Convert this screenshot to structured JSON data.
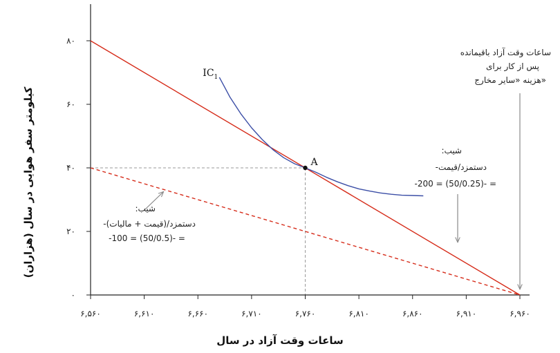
{
  "chart_data": {
    "type": "line",
    "xlabel": "ساعات وقت آزاد در سال",
    "ylabel": "کیلومتر سفر هوایی در سال (هزاران)",
    "xlim": [
      6560,
      6960
    ],
    "ylim": [
      0,
      80
    ],
    "x_ticks": [
      {
        "value": 6560,
        "label": "۶,۵۶۰"
      },
      {
        "value": 6610,
        "label": "۶,۶۱۰"
      },
      {
        "value": 6660,
        "label": "۶,۶۶۰"
      },
      {
        "value": 6710,
        "label": "۶,۷۱۰"
      },
      {
        "value": 6760,
        "label": "۶,۷۶۰"
      },
      {
        "value": 6810,
        "label": "۶,۸۱۰"
      },
      {
        "value": 6860,
        "label": "۶,۸۶۰"
      },
      {
        "value": 6910,
        "label": "۶,۹۱۰"
      },
      {
        "value": 6960,
        "label": "۶,۹۶۰"
      }
    ],
    "y_ticks": [
      {
        "value": 0,
        "label": "۰"
      },
      {
        "value": 20,
        "label": "۲۰"
      },
      {
        "value": 40,
        "label": "۴۰"
      },
      {
        "value": 60,
        "label": "۶۰"
      },
      {
        "value": 80,
        "label": "۸۰"
      }
    ],
    "series": [
      {
        "kind": "budget-line",
        "color": "#d62c1a",
        "style": "solid",
        "points": [
          [
            6560,
            80
          ],
          [
            6960,
            0
          ]
        ]
      },
      {
        "kind": "budget-line-with-tax",
        "color": "#d62c1a",
        "style": "dashed",
        "points": [
          [
            6560,
            40
          ],
          [
            6960,
            0
          ]
        ]
      },
      {
        "name": "IC1",
        "kind": "indifference-curve",
        "color": "#3b4ea6",
        "style": "solid",
        "points": [
          [
            6680,
            68.5
          ],
          [
            6690,
            62.2
          ],
          [
            6700,
            57.0
          ],
          [
            6710,
            52.6
          ],
          [
            6720,
            48.9
          ],
          [
            6730,
            45.7
          ],
          [
            6740,
            43.2
          ],
          [
            6750,
            41.3
          ],
          [
            6760,
            40.0
          ],
          [
            6770,
            38.6
          ],
          [
            6780,
            37.0
          ],
          [
            6790,
            35.6
          ],
          [
            6800,
            34.4
          ],
          [
            6810,
            33.4
          ],
          [
            6820,
            32.7
          ],
          [
            6830,
            32.1
          ],
          [
            6840,
            31.7
          ],
          [
            6850,
            31.4
          ],
          [
            6860,
            31.3
          ],
          [
            6870,
            31.2
          ]
        ]
      }
    ],
    "point_A": {
      "label": "A",
      "x": 6760,
      "y": 40
    },
    "ic_label": {
      "main": "IC",
      "sub": "1"
    },
    "annotations": {
      "top_right": [
        "ساعات وقت آزاد باقیمانده",
        "پس از کار برای",
        "هزینه «سایر مخارج»"
      ],
      "slope_red": [
        ":شیب",
        "-دستمزد/قیمت",
        "-200 = (50/0.25)- ="
      ],
      "slope_dashed": [
        ":شیب",
        "-دستمزد/(قیمت + مالیات)",
        "-100 = (50/0.5)- ="
      ]
    },
    "colors": {
      "budget": "#d62c1a",
      "ic": "#3b4ea6",
      "guide": "#999999",
      "axis": "#222222",
      "arrow": "#888888"
    }
  }
}
